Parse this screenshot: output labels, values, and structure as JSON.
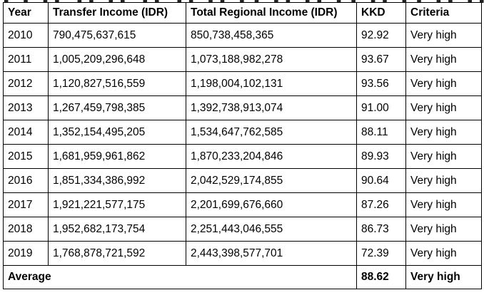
{
  "table": {
    "headers": {
      "year": "Year",
      "transfer": "Transfer Income (IDR)",
      "total": "Total Regional Income (IDR)",
      "kkd": "KKD",
      "criteria": "Criteria"
    },
    "rows": [
      {
        "year": "2010",
        "transfer": "790,475,637,615",
        "total": "850,738,458,365",
        "kkd": "92.92",
        "criteria": "Very high"
      },
      {
        "year": "2011",
        "transfer": "1,005,209,296,648",
        "total": "1,073,188,982,278",
        "kkd": "93.67",
        "criteria": "Very high"
      },
      {
        "year": "2012",
        "transfer": "1,120,827,516,559",
        "total": "1,198,004,102,131",
        "kkd": "93.56",
        "criteria": "Very high"
      },
      {
        "year": "2013",
        "transfer": "1,267,459,798,385",
        "total": "1,392,738,913,074",
        "kkd": "91.00",
        "criteria": "Very high"
      },
      {
        "year": "2014",
        "transfer": "1,352,154,495,205",
        "total": "1,534,647,762,585",
        "kkd": "88.11",
        "criteria": "Very high"
      },
      {
        "year": "2015",
        "transfer": "1,681,959,961,862",
        "total": "1,870,233,204,846",
        "kkd": "89.93",
        "criteria": "Very high"
      },
      {
        "year": "2016",
        "transfer": "1,851,334,386,992",
        "total": "2,042,529,174,855",
        "kkd": "90.64",
        "criteria": "Very high"
      },
      {
        "year": "2017",
        "transfer": "1,921,221,577,175",
        "total": "2,201,699,676,660",
        "kkd": "87.26",
        "criteria": "Very high"
      },
      {
        "year": "2018",
        "transfer": "1,952,682,173,754",
        "total": "2,251,443,046,555",
        "kkd": "86.73",
        "criteria": "Very high"
      },
      {
        "year": "2019",
        "transfer": "1,768,878,721,592",
        "total": "2,443,398,577,701",
        "kkd": "72.39",
        "criteria": "Very high"
      }
    ],
    "footer": {
      "label": "Average",
      "kkd": "88.62",
      "criteria": "Very high"
    }
  }
}
